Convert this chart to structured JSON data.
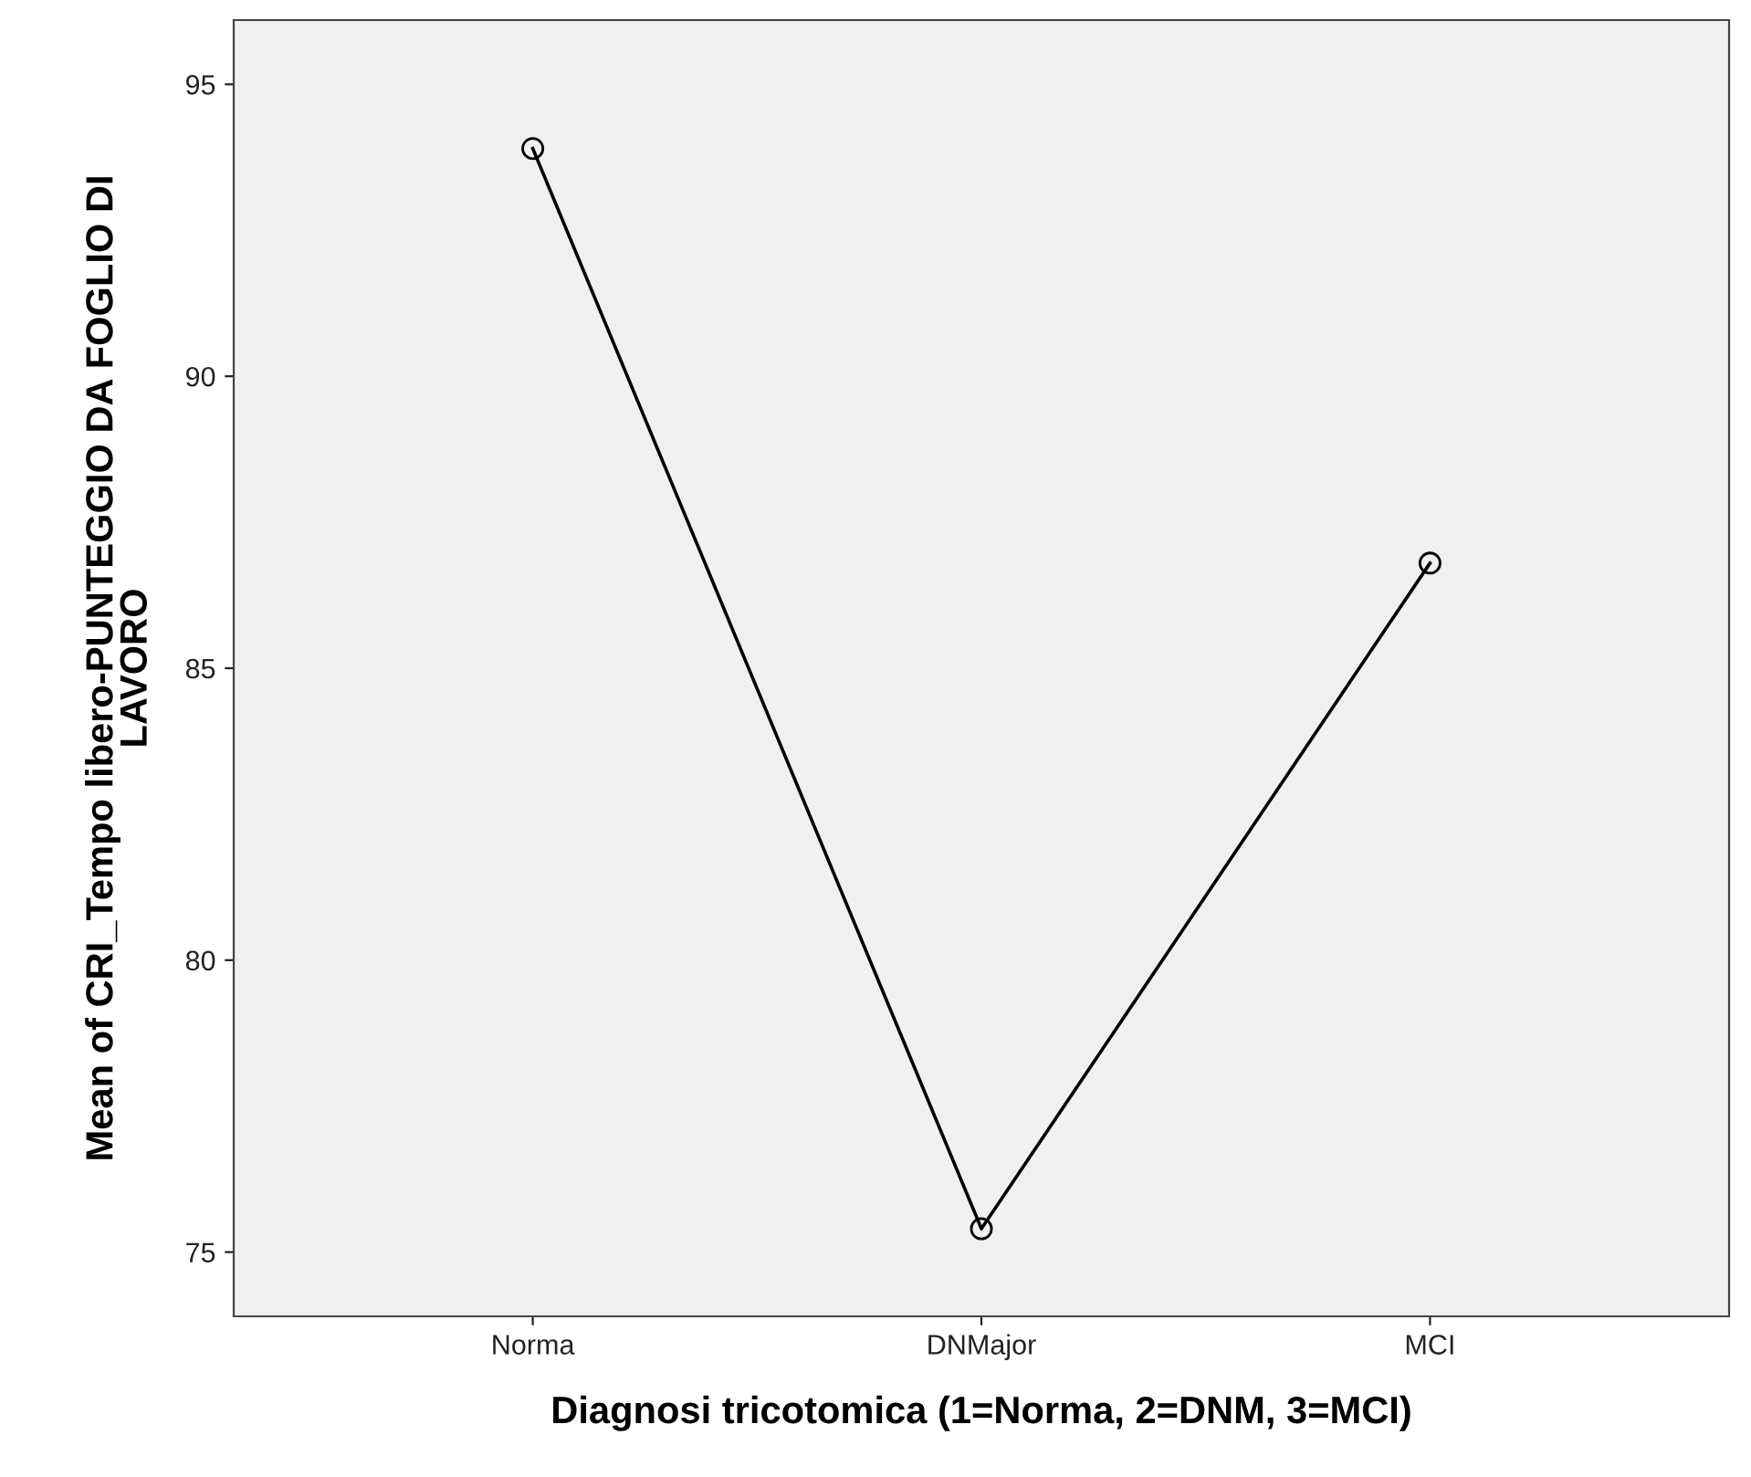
{
  "chart_data": {
    "type": "line",
    "xlabel": "Diagnosi tricotomica (1=Norma, 2=DNM, 3=MCI)",
    "ylabel": "Mean of CRI_Tempo libero-PUNTEGGIO DA FOGLIO DI\nLAVORO",
    "categories": [
      "Norma",
      "DNMajor",
      "MCI"
    ],
    "series": [
      {
        "color": "#000000",
        "values": [
          93.9,
          75.4,
          86.8
        ]
      }
    ],
    "ylim": [
      73.9,
      96.1
    ],
    "yticks": [
      75,
      80,
      85,
      90,
      95
    ],
    "grid": false,
    "legend": false,
    "marker": "circle",
    "line_style": "solid"
  }
}
